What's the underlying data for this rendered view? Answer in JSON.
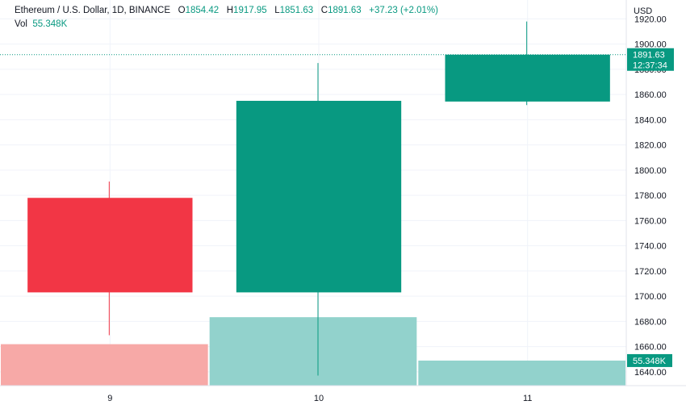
{
  "header": {
    "symbol": "Ethereum / U.S. Dollar, 1D, BINANCE",
    "open_label": "O",
    "open": "1854.42",
    "high_label": "H",
    "high": "1917.95",
    "low_label": "L",
    "low": "1851.63",
    "close_label": "C",
    "close": "1891.63",
    "change": "+37.23 (+2.01%)",
    "vol_label": "Vol",
    "vol": "55.348K"
  },
  "price_axis": {
    "currency": "USD",
    "last_price": "1891.63",
    "countdown": "12:37:34",
    "volume_badge": "55.348K"
  },
  "colors": {
    "up": "#089981",
    "down": "#f23645",
    "vol_up": "#92d2cc",
    "vol_down": "#f7a9a7",
    "grid": "#f0f3fa"
  },
  "chart_data": {
    "type": "candlestick",
    "x_ticks": [
      "9",
      "10",
      "11"
    ],
    "y_ticks": [
      "1640.00",
      "1660.00",
      "1680.00",
      "1700.00",
      "1720.00",
      "1740.00",
      "1760.00",
      "1780.00",
      "1800.00",
      "1820.00",
      "1840.00",
      "1860.00",
      "1880.00",
      "1900.00",
      "1920.00"
    ],
    "ylim": [
      1629,
      1935
    ],
    "candles": [
      {
        "x": "9",
        "open": 1778,
        "high": 1791,
        "low": 1669,
        "close": 1703,
        "dir": "down"
      },
      {
        "x": "10",
        "open": 1703,
        "high": 1885,
        "low": 1637,
        "close": 1855,
        "dir": "up"
      },
      {
        "x": "11",
        "open": 1854.42,
        "high": 1917.95,
        "low": 1851.63,
        "close": 1891.63,
        "dir": "up"
      }
    ],
    "volume": [
      {
        "x": "9",
        "share": 0.43,
        "dir": "down"
      },
      {
        "x": "10",
        "share": 0.71,
        "dir": "up"
      },
      {
        "x": "11",
        "share": 0.26,
        "dir": "up"
      }
    ]
  }
}
